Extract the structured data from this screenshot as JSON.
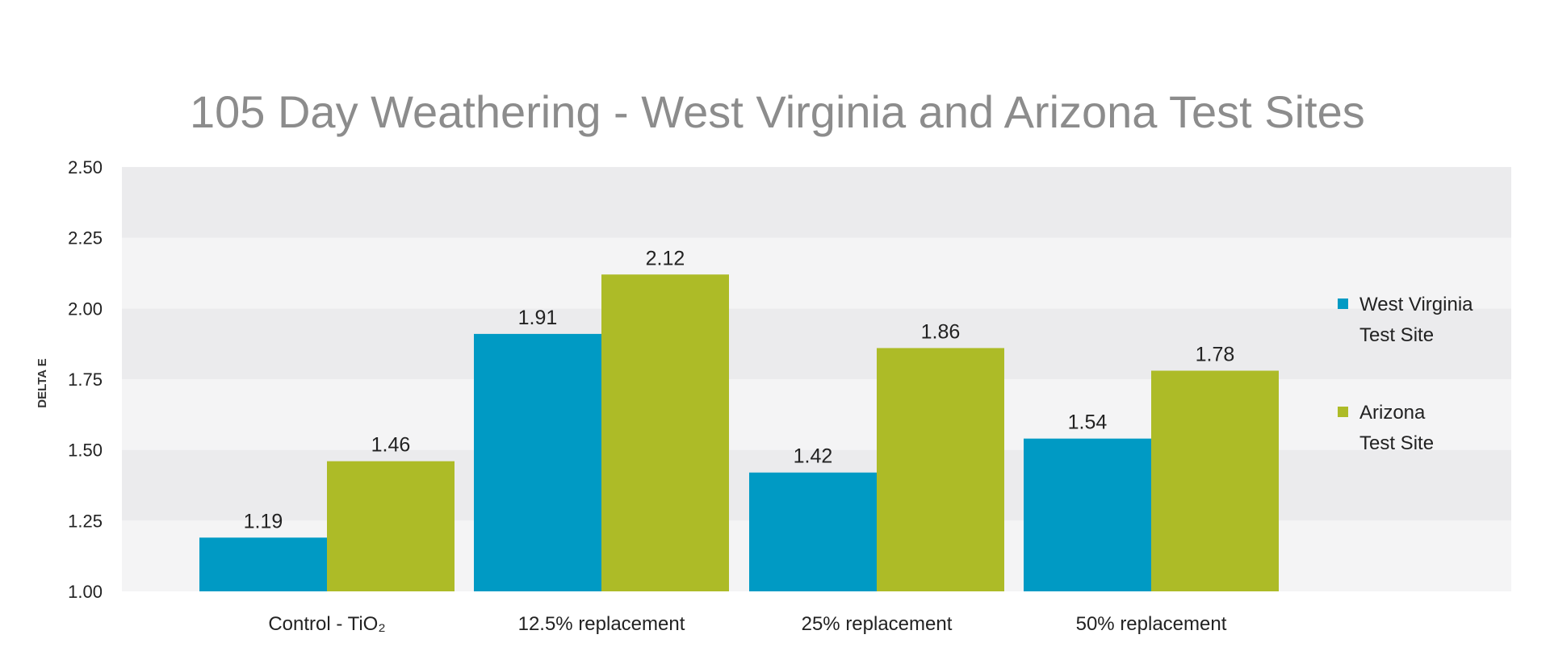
{
  "chart_data": {
    "type": "bar",
    "title": "105 Day Weathering - West Virginia and Arizona Test Sites",
    "ylabel": "DELTA E",
    "xlabel": "",
    "ylim": [
      1.0,
      2.5
    ],
    "yticks": [
      "1.00",
      "1.25",
      "1.50",
      "1.75",
      "2.00",
      "2.25",
      "2.50"
    ],
    "categories": [
      "Control - TiO₂",
      "12.5% replacement",
      "25% replacement",
      "50% replacement"
    ],
    "series": [
      {
        "name": "West Virginia Test Site",
        "legend_lines": [
          "West Virginia",
          "Test Site"
        ],
        "color": "#009ac4",
        "values": [
          1.19,
          1.91,
          1.42,
          1.54
        ],
        "labels": [
          "1.19",
          "1.91",
          "1.42",
          "1.54"
        ]
      },
      {
        "name": "Arizona Test Site",
        "legend_lines": [
          "Arizona",
          "Test Site"
        ],
        "color": "#adbb27",
        "values": [
          1.46,
          2.12,
          1.86,
          1.78
        ],
        "labels": [
          "1.46",
          "2.12",
          "1.86",
          "1.78"
        ]
      }
    ],
    "grid": "alternating horizontal bands",
    "legend_position": "right"
  }
}
